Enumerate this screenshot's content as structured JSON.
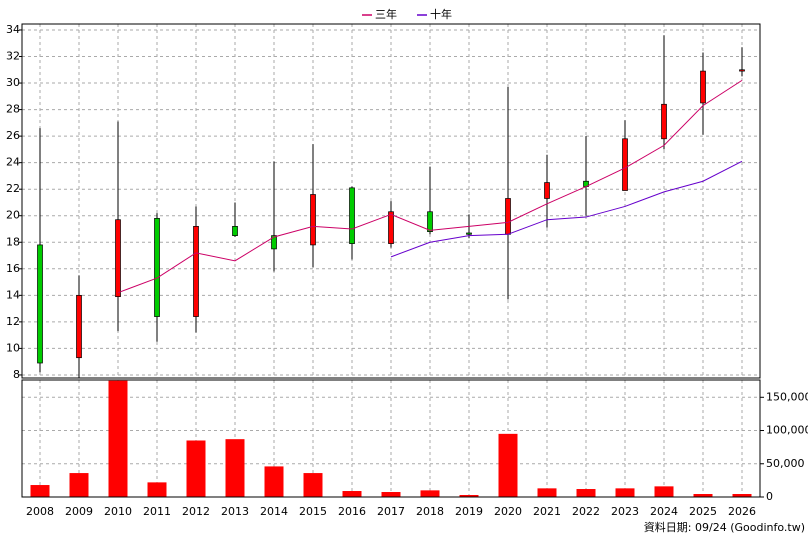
{
  "chart_data": [
    {
      "type": "candlestick",
      "open": [
        17.8,
        9.3,
        13.9,
        19.8,
        12.4,
        19.2,
        18.5,
        17.8,
        22.1,
        17.9,
        20.3,
        18.7,
        18.6,
        21.3,
        22.6,
        21.9,
        25.8,
        28.5,
        30.9
      ],
      "high": [
        26.6,
        15.5,
        27.1,
        20.2,
        20.7,
        21.0,
        24.1,
        25.4,
        22.2,
        21.1,
        23.7,
        20.1,
        29.7,
        24.6,
        26.0,
        27.2,
        33.6,
        32.3,
        32.7
      ],
      "low": [
        8.2,
        7.8,
        11.3,
        10.5,
        11.2,
        18.4,
        15.8,
        16.1,
        16.7,
        17.6,
        18.6,
        18.3,
        13.7,
        19.1,
        20.0,
        21.9,
        25.0,
        26.1,
        30.5
      ],
      "close": [
        8.9,
        14.0,
        19.7,
        12.4,
        19.2,
        18.5,
        17.5,
        21.6,
        17.9,
        20.3,
        18.8,
        18.6,
        21.3,
        22.5,
        22.2,
        25.8,
        28.4,
        30.9,
        31.0
      ],
      "up_color": "#ff0000",
      "down_color": "#00cc00",
      "series": [
        {
          "name": "三年",
          "color": "#cc0066",
          "values": [
            null,
            null,
            14.2,
            15.3,
            17.2,
            16.6,
            18.4,
            19.2,
            19.0,
            20.1,
            18.9,
            19.2,
            19.5,
            20.9,
            22.2,
            23.6,
            25.3,
            28.3,
            30.2
          ]
        },
        {
          "name": "十年",
          "color": "#6600cc",
          "values": [
            null,
            null,
            null,
            null,
            null,
            null,
            null,
            null,
            null,
            16.9,
            18.0,
            18.5,
            18.6,
            19.7,
            19.9,
            20.7,
            21.8,
            22.6,
            24.1
          ]
        }
      ],
      "ylim": [
        7.77,
        34.45
      ],
      "yticks": [
        8,
        10,
        12,
        14,
        16,
        18,
        20,
        22,
        24,
        26,
        28,
        30,
        32,
        34
      ],
      "grid": true
    },
    {
      "type": "bar",
      "categories": [
        "2008",
        "2009",
        "2010",
        "2011",
        "2012",
        "2013",
        "2014",
        "2015",
        "2016",
        "2017",
        "2018",
        "2019",
        "2020",
        "2021",
        "2022",
        "2023",
        "2024",
        "2025",
        "2026"
      ],
      "values": [
        18000,
        36000,
        175000,
        22000,
        85000,
        87000,
        46000,
        36000,
        9000,
        7500,
        10000,
        3000,
        95000,
        13000,
        12000,
        13000,
        16000,
        4500,
        4500
      ],
      "color": "#ff0000",
      "ylim": [
        0,
        176000
      ],
      "yticks": [
        0,
        {
          "value": 50000,
          "label": "50,000"
        },
        {
          "value": 100000,
          "label": "100,000"
        },
        {
          "value": 150000,
          "label": "150,000"
        }
      ],
      "grid": true
    }
  ],
  "footer": "資料日期: 09/24 (Goodinfo.tw)"
}
